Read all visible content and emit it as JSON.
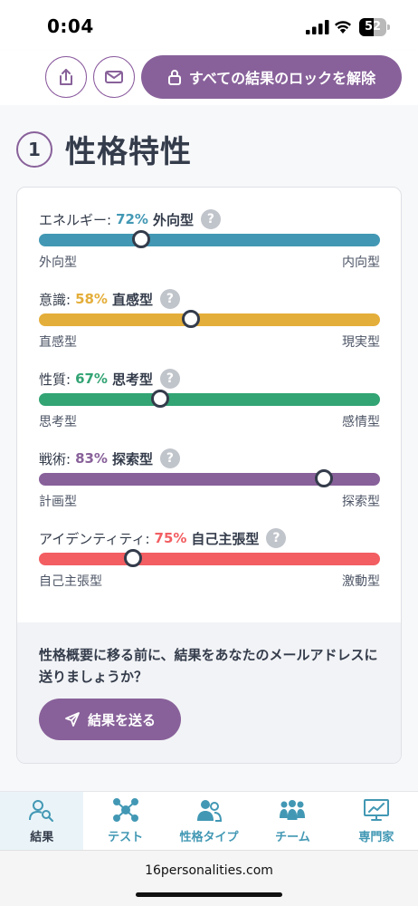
{
  "status_bar": {
    "time": "0:04",
    "battery": "52",
    "battery_level": 0.52
  },
  "toolbar": {
    "unlock_label": "すべての結果のロックを解除"
  },
  "section": {
    "number": "1",
    "title": "性格特性"
  },
  "traits": [
    {
      "label": "エネルギー:",
      "percent": "72%",
      "type": "外向型",
      "left": "外向型",
      "right": "内向型",
      "color": "#4298b4",
      "position": 0.3
    },
    {
      "label": "意識:",
      "percent": "58%",
      "type": "直感型",
      "left": "直感型",
      "right": "現実型",
      "color": "#e4ae3a",
      "position": 0.445
    },
    {
      "label": "性質:",
      "percent": "67%",
      "type": "思考型",
      "left": "思考型",
      "right": "感情型",
      "color": "#33a474",
      "position": 0.355
    },
    {
      "label": "戦術:",
      "percent": "83%",
      "type": "探索型",
      "left": "計画型",
      "right": "探索型",
      "color": "#88619a",
      "position": 0.835
    },
    {
      "label": "アイデンティティ:",
      "percent": "75%",
      "type": "自己主張型",
      "left": "自己主張型",
      "right": "激動型",
      "color": "#f25e62",
      "position": 0.275
    }
  ],
  "help_glyph": "?",
  "cta": {
    "text": "性格概要に移る前に、結果をあなたのメールアドレスに送りましょうか？",
    "button": "結果を送る"
  },
  "nav": [
    {
      "label": "結果",
      "icon": "person-search-icon",
      "active": true
    },
    {
      "label": "テスト",
      "icon": "network-icon",
      "active": false
    },
    {
      "label": "性格タイプ",
      "icon": "people-icon",
      "active": false
    },
    {
      "label": "チーム",
      "icon": "team-icon",
      "active": false
    },
    {
      "label": "専門家",
      "icon": "presentation-chart-icon",
      "active": false
    }
  ],
  "url": "16personalities.com"
}
